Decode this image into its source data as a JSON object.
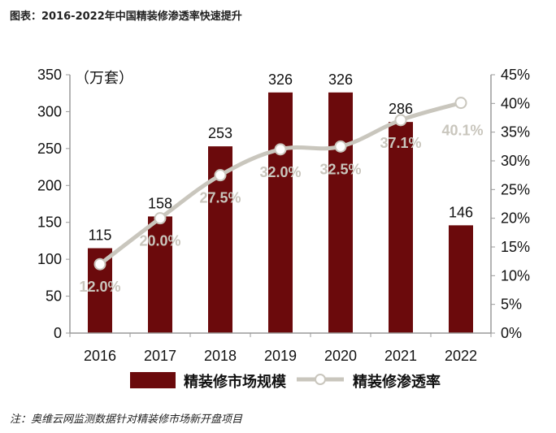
{
  "header": {
    "title": "图表：2016-2022年中国精装修渗透率快速提升"
  },
  "footer": {
    "note": "注：奥维云网监测数据针对精装修市场新开盘项目"
  },
  "chart_data": {
    "type": "bar+line",
    "unit_label": "（万套）",
    "categories": [
      "2016",
      "2017",
      "2018",
      "2019",
      "2020",
      "2021",
      "2022"
    ],
    "series": [
      {
        "name": "精装修市场规模",
        "type": "bar",
        "axis": "left",
        "values": [
          115,
          158,
          253,
          326,
          326,
          286,
          146
        ],
        "labels": [
          "115",
          "158",
          "253",
          "326",
          "326",
          "286",
          "146"
        ]
      },
      {
        "name": "精装修渗透率",
        "type": "line",
        "axis": "right",
        "values": [
          12.0,
          20.0,
          27.5,
          32.0,
          32.5,
          37.1,
          40.1
        ],
        "labels": [
          "12.0%",
          "20.0%",
          "27.5%",
          "32.0%",
          "32.5%",
          "37.1%",
          "40.1%"
        ]
      }
    ],
    "y_left": {
      "ylim": [
        0,
        350
      ],
      "ticks": [
        0,
        50,
        100,
        150,
        200,
        250,
        300,
        350
      ],
      "tick_labels": [
        "0",
        "50",
        "100",
        "150",
        "200",
        "250",
        "300",
        "350"
      ]
    },
    "y_right": {
      "ylim": [
        0,
        45
      ],
      "ticks": [
        0,
        5,
        10,
        15,
        20,
        25,
        30,
        35,
        40,
        45
      ],
      "tick_labels": [
        "0%",
        "5%",
        "10%",
        "15%",
        "20%",
        "25%",
        "30%",
        "35%",
        "40%",
        "45%"
      ]
    },
    "grid": false,
    "legend_position": "bottom",
    "colors": {
      "bar": "#6b0a0c",
      "line": "#c9c6bd",
      "marker_fill": "#ffffff",
      "axis": "#9a9a9a"
    }
  }
}
